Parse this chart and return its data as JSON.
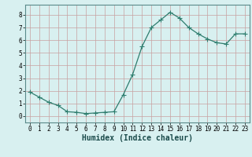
{
  "x": [
    0,
    1,
    2,
    3,
    4,
    5,
    6,
    7,
    8,
    9,
    10,
    11,
    12,
    13,
    14,
    15,
    16,
    17,
    18,
    19,
    20,
    21,
    22,
    23
  ],
  "y": [
    1.9,
    1.5,
    1.1,
    0.85,
    0.35,
    0.3,
    0.2,
    0.25,
    0.3,
    0.35,
    1.7,
    3.3,
    5.5,
    7.0,
    7.6,
    8.2,
    7.75,
    7.0,
    6.5,
    6.1,
    5.8,
    5.7,
    6.5,
    6.5
  ],
  "line_color": "#2e7d6e",
  "marker": "+",
  "marker_size": 4.0,
  "line_width": 0.9,
  "background_color": "#d8f0f0",
  "grid_color": "#c0d8d8",
  "xlabel": "Humidex (Indice chaleur)",
  "xlabel_fontsize": 7,
  "xlim": [
    -0.5,
    23.5
  ],
  "ylim": [
    -0.5,
    8.8
  ],
  "yticks": [
    0,
    1,
    2,
    3,
    4,
    5,
    6,
    7,
    8
  ],
  "xticks": [
    0,
    1,
    2,
    3,
    4,
    5,
    6,
    7,
    8,
    9,
    10,
    11,
    12,
    13,
    14,
    15,
    16,
    17,
    18,
    19,
    20,
    21,
    22,
    23
  ],
  "tick_fontsize": 5.5
}
